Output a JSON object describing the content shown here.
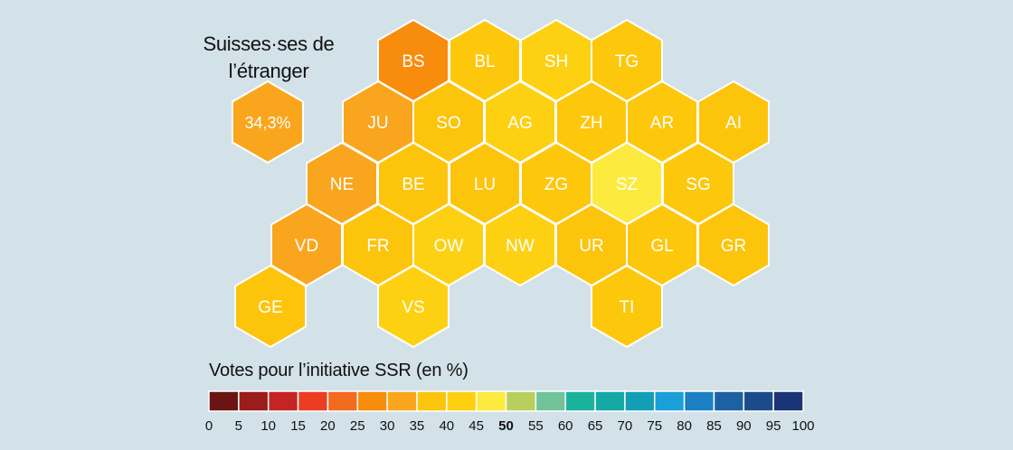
{
  "diaspora": {
    "label_line1": "Suisses·ses de",
    "label_line2": "l’étranger",
    "value": "34,3%",
    "color": "#f9a61e"
  },
  "cantons": [
    {
      "code": "BS",
      "color": "#f88c0c"
    },
    {
      "code": "BL",
      "color": "#fdc70c"
    },
    {
      "code": "SH",
      "color": "#fdd112"
    },
    {
      "code": "TG",
      "color": "#fdc70c"
    },
    {
      "code": "JU",
      "color": "#f9a61e"
    },
    {
      "code": "SO",
      "color": "#fdc40c"
    },
    {
      "code": "AG",
      "color": "#fdd112"
    },
    {
      "code": "ZH",
      "color": "#fdc70c"
    },
    {
      "code": "AR",
      "color": "#fdc70c"
    },
    {
      "code": "AI",
      "color": "#fdc40c"
    },
    {
      "code": "NE",
      "color": "#f9a61e"
    },
    {
      "code": "BE",
      "color": "#fdc40c"
    },
    {
      "code": "LU",
      "color": "#fdc40c"
    },
    {
      "code": "ZG",
      "color": "#fdc70c"
    },
    {
      "code": "SZ",
      "color": "#fdea3e"
    },
    {
      "code": "SG",
      "color": "#fdc70c"
    },
    {
      "code": "VD",
      "color": "#f9a61e"
    },
    {
      "code": "FR",
      "color": "#fdc40c"
    },
    {
      "code": "OW",
      "color": "#fdd112"
    },
    {
      "code": "NW",
      "color": "#fdd112"
    },
    {
      "code": "UR",
      "color": "#fdc40c"
    },
    {
      "code": "GL",
      "color": "#fdc70c"
    },
    {
      "code": "GR",
      "color": "#fdc40c"
    },
    {
      "code": "GE",
      "color": "#fdc40c"
    },
    {
      "code": "VS",
      "color": "#fdd112"
    },
    {
      "code": "TI",
      "color": "#fdc70c"
    }
  ],
  "legend": {
    "title": "Votes pour l’initiative SSR (en %)",
    "colors": [
      "#6b1414",
      "#9a1c1c",
      "#c42424",
      "#ec3d23",
      "#f36b1f",
      "#f88c0c",
      "#f9a61e",
      "#fdc40c",
      "#fdd112",
      "#fdea3e",
      "#b9cf5d",
      "#72c39a",
      "#19b39b",
      "#15a9a5",
      "#129fb6",
      "#1a9fd8",
      "#1b7fc3",
      "#1c62a3",
      "#1b4b8b",
      "#193477"
    ],
    "ticks": [
      "0",
      "5",
      "10",
      "15",
      "20",
      "25",
      "30",
      "35",
      "40",
      "45",
      "50",
      "55",
      "60",
      "65",
      "70",
      "75",
      "80",
      "85",
      "90",
      "95",
      "100"
    ],
    "bold_tick": "50"
  }
}
